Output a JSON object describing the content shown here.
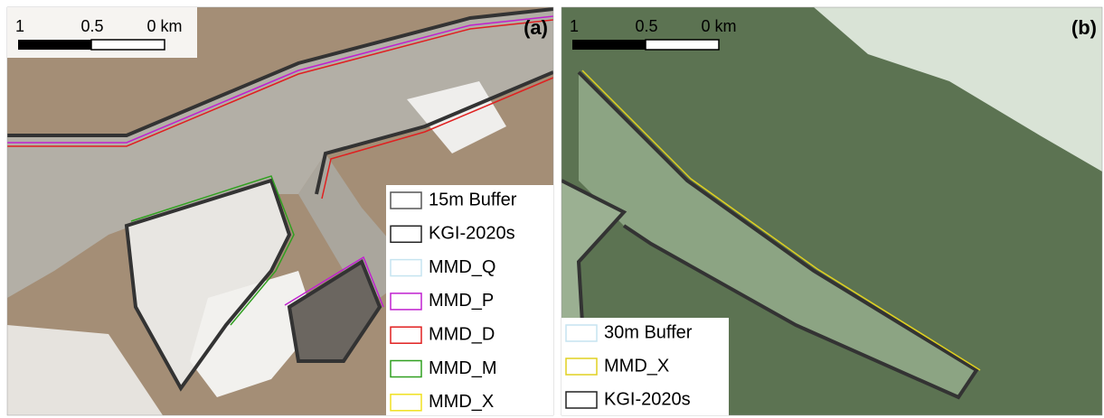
{
  "panels": [
    {
      "label": "(a)",
      "scale_bar": [
        "1",
        "0.5",
        "0 km"
      ],
      "legend": [
        {
          "name": "15m Buffer",
          "color": "#555555"
        },
        {
          "name": "KGI-2020s",
          "color": "#222222"
        },
        {
          "name": "MMD_Q",
          "color": "#c6e4f0"
        },
        {
          "name": "MMD_P",
          "color": "#c020d0"
        },
        {
          "name": "MMD_D",
          "color": "#e02020"
        },
        {
          "name": "MMD_M",
          "color": "#30a020"
        },
        {
          "name": "MMD_X",
          "color": "#f0e020"
        }
      ]
    },
    {
      "label": "(b)",
      "scale_bar": [
        "1",
        "0.5",
        "0 km"
      ],
      "legend": [
        {
          "name": "30m Buffer",
          "color": "#c6e4f0"
        },
        {
          "name": "MMD_X",
          "color": "#e0d020"
        },
        {
          "name": "KGI-2020s",
          "color": "#222222"
        }
      ]
    }
  ]
}
